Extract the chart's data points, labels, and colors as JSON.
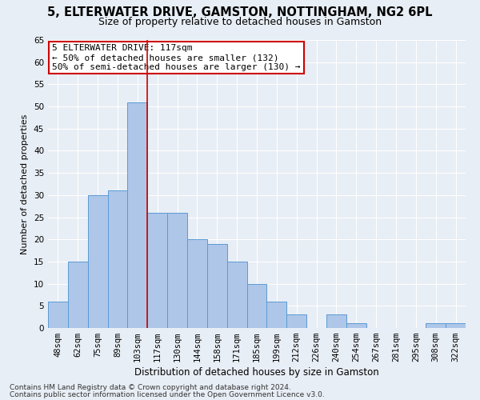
{
  "title1": "5, ELTERWATER DRIVE, GAMSTON, NOTTINGHAM, NG2 6PL",
  "title2": "Size of property relative to detached houses in Gamston",
  "xlabel": "Distribution of detached houses by size in Gamston",
  "ylabel": "Number of detached properties",
  "categories": [
    "48sqm",
    "62sqm",
    "75sqm",
    "89sqm",
    "103sqm",
    "117sqm",
    "130sqm",
    "144sqm",
    "158sqm",
    "171sqm",
    "185sqm",
    "199sqm",
    "212sqm",
    "226sqm",
    "240sqm",
    "254sqm",
    "267sqm",
    "281sqm",
    "295sqm",
    "308sqm",
    "322sqm"
  ],
  "values": [
    6,
    15,
    30,
    31,
    51,
    26,
    26,
    20,
    19,
    15,
    10,
    6,
    3,
    0,
    3,
    1,
    0,
    0,
    0,
    1,
    1
  ],
  "bar_color": "#aec6e8",
  "bar_edge_color": "#5b9bd5",
  "vline_bar_index": 5,
  "vline_color": "#cc0000",
  "annotation_line1": "5 ELTERWATER DRIVE: 117sqm",
  "annotation_line2": "← 50% of detached houses are smaller (132)",
  "annotation_line3": "50% of semi-detached houses are larger (130) →",
  "annotation_box_color": "#ffffff",
  "annotation_box_edge": "#cc0000",
  "ylim": [
    0,
    65
  ],
  "yticks": [
    0,
    5,
    10,
    15,
    20,
    25,
    30,
    35,
    40,
    45,
    50,
    55,
    60,
    65
  ],
  "footer1": "Contains HM Land Registry data © Crown copyright and database right 2024.",
  "footer2": "Contains public sector information licensed under the Open Government Licence v3.0.",
  "bg_color": "#e8eef5",
  "plot_bg_color": "#e8eef5",
  "title1_fontsize": 10.5,
  "title2_fontsize": 9,
  "xlabel_fontsize": 8.5,
  "ylabel_fontsize": 8,
  "tick_fontsize": 7.5,
  "annotation_fontsize": 8,
  "footer_fontsize": 6.5
}
